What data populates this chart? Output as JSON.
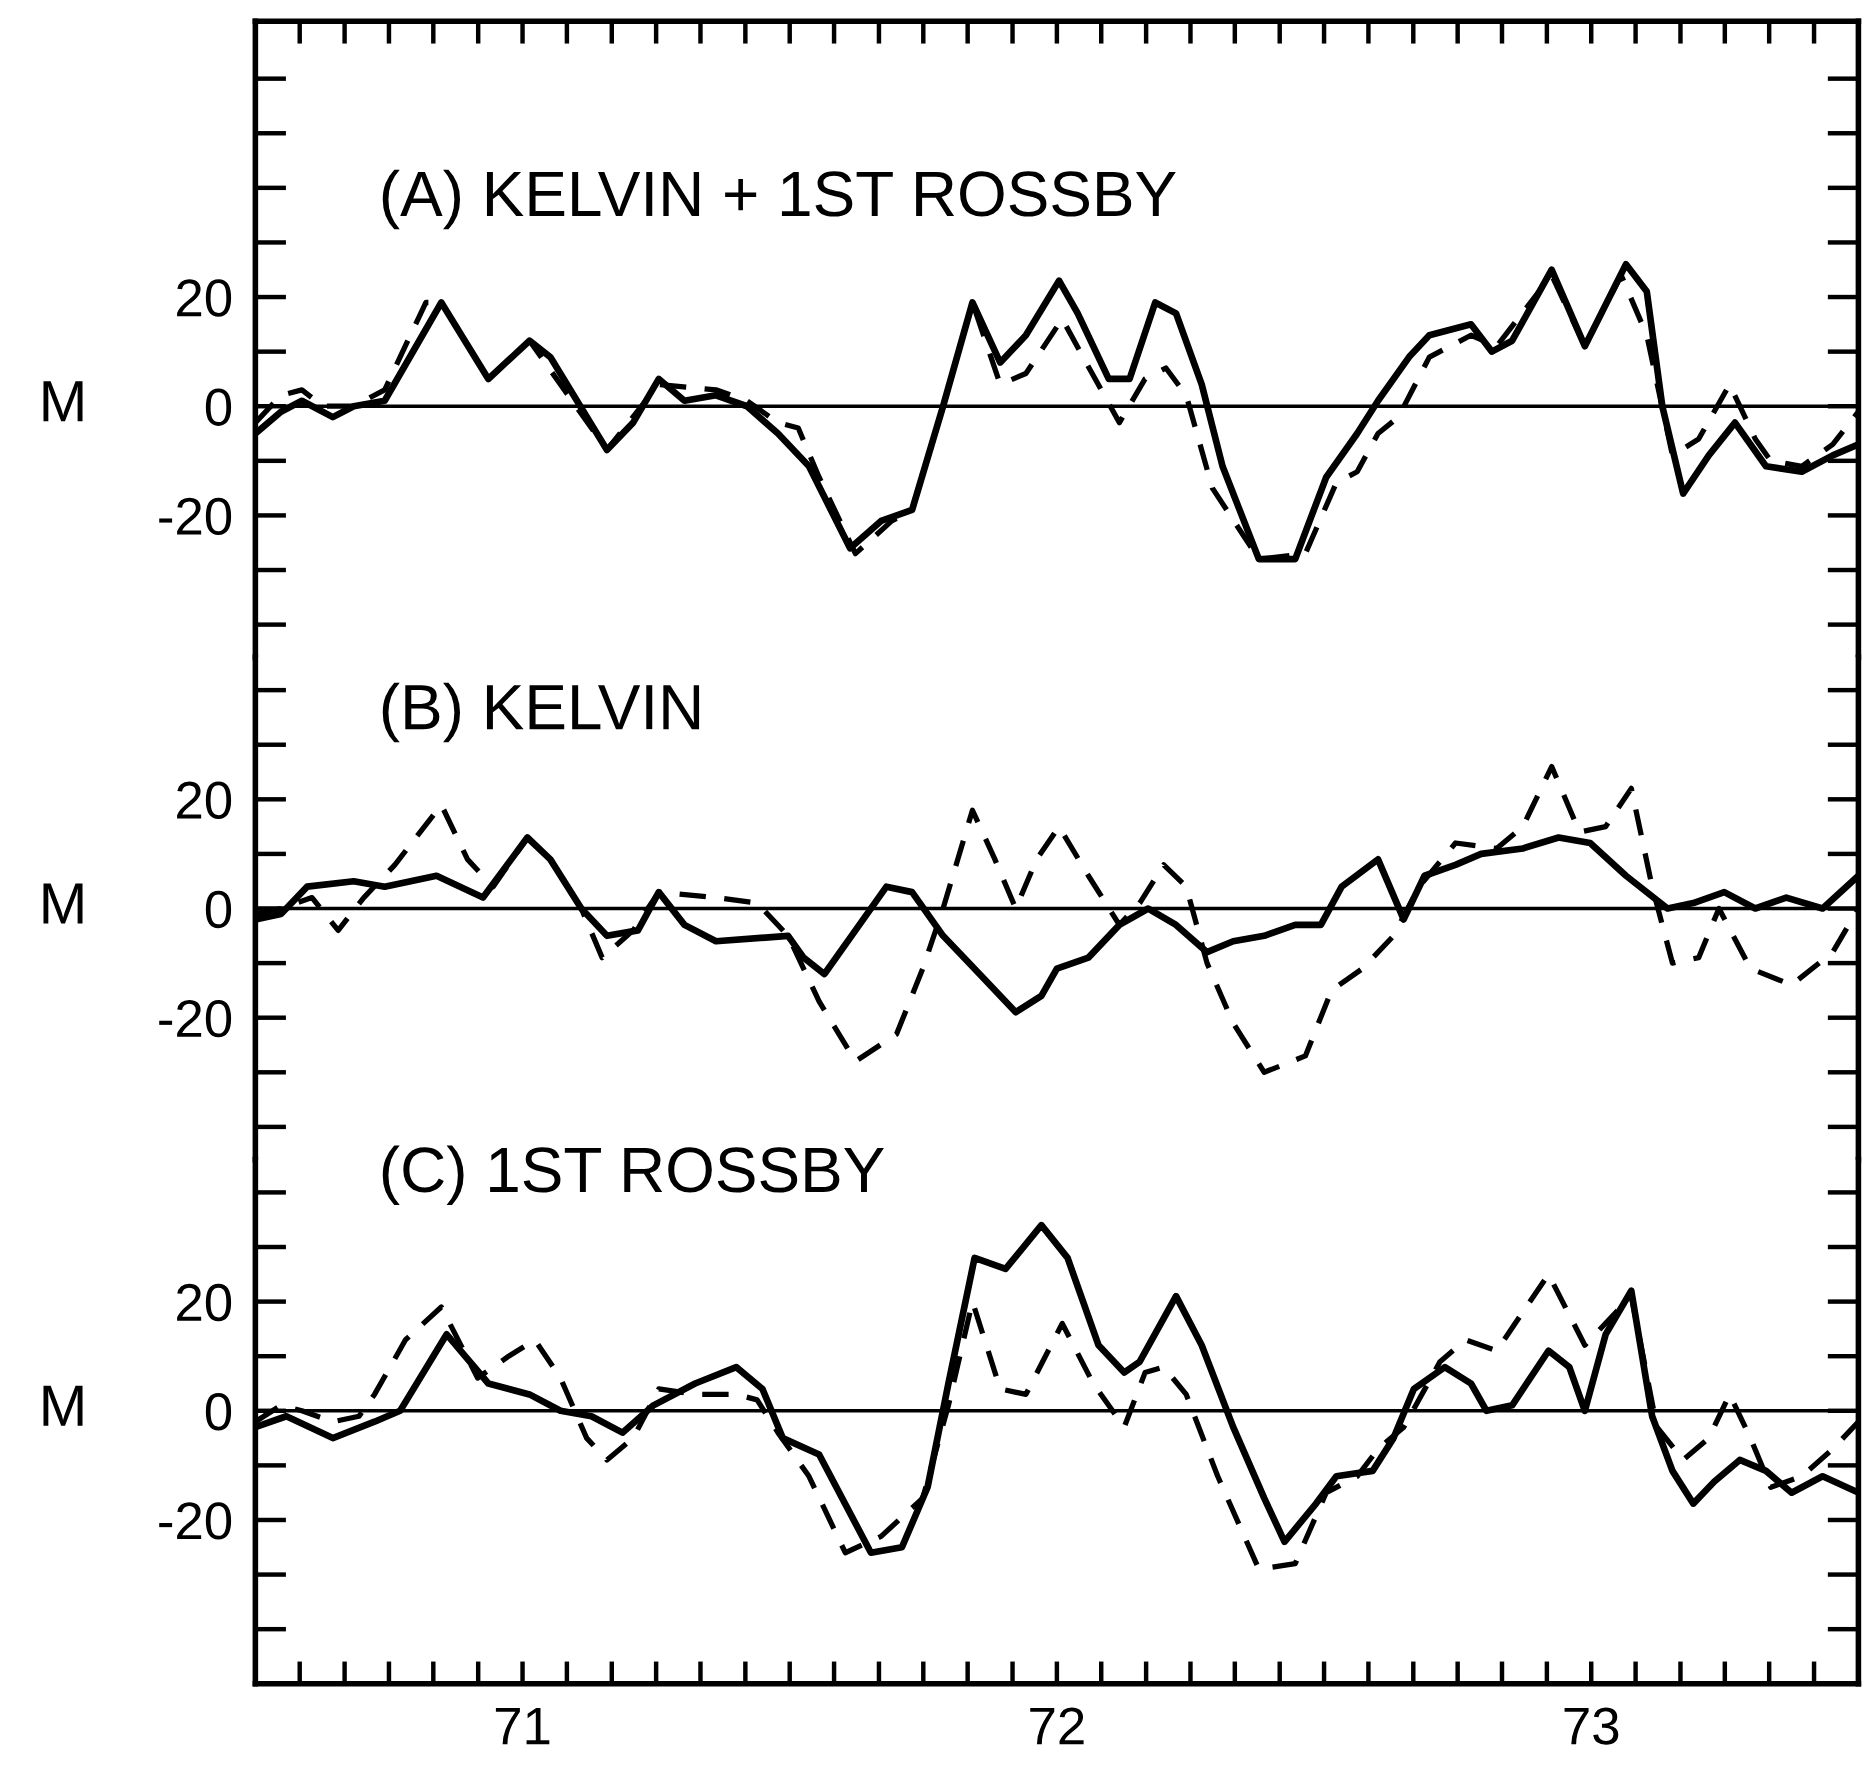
{
  "chart_data": [
    {
      "type": "line",
      "title": "(A) KELVIN + 1ST ROSSBY",
      "ylabel": "M",
      "xlim": [
        71,
        74
      ],
      "ylim": [
        -46,
        70.5
      ],
      "tick_labels": "y",
      "xticks": [
        {
          "value": 71.083,
          "label": null
        },
        {
          "value": 71.167,
          "label": null
        },
        {
          "value": 71.25,
          "label": null
        },
        {
          "value": 71.333,
          "label": null
        },
        {
          "value": 71.417,
          "label": null
        },
        {
          "value": 71.5,
          "label": null
        },
        {
          "value": 71.583,
          "label": null
        },
        {
          "value": 71.667,
          "label": null
        },
        {
          "value": 71.75,
          "label": null
        },
        {
          "value": 71.833,
          "label": null
        },
        {
          "value": 71.917,
          "label": null
        },
        {
          "value": 72,
          "label": null
        },
        {
          "value": 72.083,
          "label": null
        },
        {
          "value": 72.167,
          "label": null
        },
        {
          "value": 72.25,
          "label": null
        },
        {
          "value": 72.333,
          "label": null
        },
        {
          "value": 72.417,
          "label": null
        },
        {
          "value": 72.5,
          "label": null
        },
        {
          "value": 72.583,
          "label": null
        },
        {
          "value": 72.667,
          "label": null
        },
        {
          "value": 72.75,
          "label": null
        },
        {
          "value": 72.833,
          "label": null
        },
        {
          "value": 72.917,
          "label": null
        },
        {
          "value": 73,
          "label": null
        },
        {
          "value": 73.083,
          "label": null
        },
        {
          "value": 73.167,
          "label": null
        },
        {
          "value": 73.25,
          "label": null
        },
        {
          "value": 73.333,
          "label": null
        },
        {
          "value": 73.417,
          "label": null
        },
        {
          "value": 73.5,
          "label": null
        },
        {
          "value": 73.583,
          "label": null
        },
        {
          "value": 73.667,
          "label": null
        },
        {
          "value": 73.75,
          "label": null
        },
        {
          "value": 73.833,
          "label": null
        },
        {
          "value": 73.917,
          "label": null
        }
      ],
      "yticks": [
        {
          "value": -40,
          "label": null
        },
        {
          "value": -30,
          "label": null
        },
        -20,
        {
          "value": -10,
          "label": null
        },
        0,
        {
          "value": 10,
          "label": null
        },
        20,
        {
          "value": 30,
          "label": null
        },
        {
          "value": 40,
          "label": null
        },
        {
          "value": 50,
          "label": null
        },
        {
          "value": 60,
          "label": null
        }
      ],
      "ref_lines": [
        {
          "axis": "y",
          "value": 0,
          "color": "#000000"
        }
      ],
      "series": [
        {
          "color": "#000000",
          "line_style": "solid",
          "x": [
            71.0,
            71.048,
            71.087,
            71.145,
            71.184,
            71.242,
            71.348,
            71.436,
            71.513,
            71.552,
            71.658,
            71.707,
            71.755,
            71.803,
            71.862,
            71.92,
            71.978,
            72.036,
            72.113,
            72.171,
            72.229,
            72.287,
            72.342,
            72.394,
            72.442,
            72.504,
            72.539,
            72.597,
            72.636,
            72.684,
            72.723,
            72.771,
            72.81,
            72.878,
            72.946,
            73.004,
            73.062,
            73.101,
            73.159,
            73.197,
            73.275,
            73.314,
            73.352,
            73.426,
            73.488,
            73.565,
            73.604,
            73.633,
            73.672,
            73.72,
            73.769,
            73.827,
            73.894,
            73.952,
            74.0
          ],
          "values": [
            -5,
            -1,
            1,
            -2,
            0,
            1,
            19,
            5,
            12,
            9,
            -8,
            -3,
            5,
            1,
            2,
            0,
            -5,
            -11,
            -26,
            -21,
            -19,
            0,
            19,
            8,
            13,
            23,
            17,
            5,
            5,
            19,
            17,
            4,
            -11,
            -28,
            -28,
            -13,
            -5,
            1,
            9,
            13,
            15,
            10,
            12,
            25,
            11,
            26,
            21,
            0,
            -16,
            -9,
            -3,
            -11,
            -12,
            -9,
            -7
          ]
        },
        {
          "color": "#000000",
          "line_style": "dashed",
          "x": [
            71.0,
            71.048,
            71.087,
            71.126,
            71.184,
            71.242,
            71.319,
            71.348,
            71.436,
            71.513,
            71.658,
            71.755,
            71.862,
            71.92,
            71.978,
            72.016,
            72.055,
            72.123,
            72.191,
            72.229,
            72.287,
            72.342,
            72.394,
            72.442,
            72.51,
            72.549,
            72.617,
            72.665,
            72.704,
            72.742,
            72.791,
            72.878,
            72.965,
            73.023,
            73.062,
            73.101,
            73.139,
            73.197,
            73.275,
            73.323,
            73.426,
            73.488,
            73.556,
            73.604,
            73.652,
            73.701,
            73.759,
            73.807,
            73.836,
            73.894,
            73.952,
            74.0
          ],
          "values": [
            -3,
            2,
            3,
            0,
            0,
            3,
            19,
            19,
            5,
            12,
            -8,
            4,
            3,
            1,
            -3,
            -4,
            -13,
            -27,
            -21,
            -19,
            0,
            19,
            4,
            6,
            16,
            9,
            -3,
            5,
            7,
            2,
            -15,
            -28,
            -27,
            -14,
            -12,
            -5,
            -2,
            9,
            13,
            11,
            24,
            11,
            24,
            13,
            -9,
            -6,
            4,
            -6,
            -10,
            -11,
            -7,
            -1
          ]
        }
      ]
    },
    {
      "type": "line",
      "title": "(B) KELVIN",
      "ylabel": "M",
      "xlim": [
        71,
        74
      ],
      "ylim": [
        -46,
        46
      ],
      "tick_labels": "y",
      "yticks": [
        {
          "value": -40,
          "label": null
        },
        {
          "value": -30,
          "label": null
        },
        -20,
        {
          "value": -10,
          "label": null
        },
        0,
        {
          "value": 10,
          "label": null
        },
        20,
        {
          "value": 30,
          "label": null
        },
        {
          "value": 40,
          "label": null
        }
      ],
      "ref_lines": [
        {
          "axis": "y",
          "value": 0,
          "color": "#000000"
        }
      ],
      "series": [
        {
          "color": "#000000",
          "line_style": "solid",
          "x": [
            71.0,
            71.048,
            71.097,
            71.184,
            71.242,
            71.339,
            71.426,
            71.509,
            71.552,
            71.61,
            71.658,
            71.716,
            71.755,
            71.803,
            71.862,
            71.997,
            72.026,
            72.065,
            72.123,
            72.181,
            72.229,
            72.287,
            72.365,
            72.423,
            72.471,
            72.5,
            72.559,
            72.617,
            72.671,
            72.723,
            72.781,
            72.83,
            72.888,
            72.946,
            72.994,
            73.033,
            73.101,
            73.149,
            73.188,
            73.246,
            73.294,
            73.372,
            73.439,
            73.498,
            73.565,
            73.643,
            73.691,
            73.749,
            73.807,
            73.865,
            73.933,
            74.0
          ],
          "values": [
            -2,
            -1,
            4,
            5,
            4,
            6,
            2,
            13,
            9,
            0,
            -5,
            -4,
            3,
            -3,
            -6,
            -5,
            -9,
            -12,
            -4,
            4,
            3,
            -5,
            -13,
            -19,
            -16,
            -11,
            -9,
            -3,
            0,
            -3,
            -8,
            -6,
            -5,
            -3,
            -3,
            4,
            9,
            -2,
            6,
            8,
            10,
            11,
            13,
            12,
            6,
            0,
            1,
            3,
            0,
            2,
            0,
            6
          ]
        },
        {
          "color": "#000000",
          "line_style": "dashed",
          "x": [
            71.0,
            71.048,
            71.106,
            71.155,
            71.203,
            71.261,
            71.348,
            71.397,
            71.445,
            71.509,
            71.552,
            71.61,
            71.649,
            71.707,
            71.755,
            71.862,
            71.939,
            71.997,
            72.055,
            72.123,
            72.2,
            72.249,
            72.287,
            72.342,
            72.384,
            72.423,
            72.462,
            72.504,
            72.559,
            72.617,
            72.655,
            72.7,
            72.742,
            72.781,
            72.83,
            72.888,
            72.965,
            73.014,
            73.072,
            73.13,
            73.178,
            73.246,
            73.323,
            73.372,
            73.426,
            73.478,
            73.527,
            73.575,
            73.614,
            73.652,
            73.701,
            73.739,
            73.798,
            73.875,
            73.952,
            74.0
          ],
          "values": [
            -1,
            0,
            2,
            -4,
            2,
            8,
            19,
            9,
            4,
            13,
            9,
            0,
            -9,
            -4,
            3,
            2,
            1,
            -5,
            -17,
            -28,
            -23,
            -11,
            0,
            18,
            9,
            0,
            9,
            15,
            6,
            -3,
            1,
            8,
            4,
            -10,
            -21,
            -30,
            -27,
            -15,
            -11,
            -5,
            4,
            12,
            11,
            15,
            26,
            14,
            15,
            22,
            4,
            -10,
            -9,
            0,
            -11,
            -14,
            -8,
            0
          ]
        }
      ]
    },
    {
      "type": "line",
      "title": "(C) 1ST ROSSBY",
      "ylabel": "M",
      "xlim": [
        71,
        74
      ],
      "ylim": [
        -50,
        46
      ],
      "xticks": [
        {
          "value": 71.083,
          "label": null
        },
        {
          "value": 71.167,
          "label": null
        },
        {
          "value": 71.25,
          "label": null
        },
        {
          "value": 71.333,
          "label": null
        },
        {
          "value": 71.417,
          "label": null
        },
        {
          "value": 71.5,
          "label": "71"
        },
        {
          "value": 71.583,
          "label": null
        },
        {
          "value": 71.667,
          "label": null
        },
        {
          "value": 71.75,
          "label": null
        },
        {
          "value": 71.833,
          "label": null
        },
        {
          "value": 71.917,
          "label": null
        },
        {
          "value": 72,
          "label": null
        },
        {
          "value": 72.083,
          "label": null
        },
        {
          "value": 72.167,
          "label": null
        },
        {
          "value": 72.25,
          "label": null
        },
        {
          "value": 72.333,
          "label": null
        },
        {
          "value": 72.417,
          "label": null
        },
        {
          "value": 72.5,
          "label": "72"
        },
        {
          "value": 72.583,
          "label": null
        },
        {
          "value": 72.667,
          "label": null
        },
        {
          "value": 72.75,
          "label": null
        },
        {
          "value": 72.833,
          "label": null
        },
        {
          "value": 72.917,
          "label": null
        },
        {
          "value": 73,
          "label": null
        },
        {
          "value": 73.083,
          "label": null
        },
        {
          "value": 73.167,
          "label": null
        },
        {
          "value": 73.25,
          "label": null
        },
        {
          "value": 73.333,
          "label": null
        },
        {
          "value": 73.417,
          "label": null
        },
        {
          "value": 73.5,
          "label": "73"
        },
        {
          "value": 73.583,
          "label": null
        },
        {
          "value": 73.667,
          "label": null
        },
        {
          "value": 73.75,
          "label": null
        },
        {
          "value": 73.833,
          "label": null
        },
        {
          "value": 73.917,
          "label": null
        }
      ],
      "yticks": [
        {
          "value": -40,
          "label": null
        },
        {
          "value": -30,
          "label": null
        },
        -20,
        {
          "value": -10,
          "label": null
        },
        0,
        {
          "value": 10,
          "label": null
        },
        20,
        {
          "value": 30,
          "label": null
        },
        {
          "value": 40,
          "label": null
        }
      ],
      "ref_lines": [
        {
          "axis": "y",
          "value": 0,
          "color": "#000000"
        }
      ],
      "series": [
        {
          "color": "#000000",
          "line_style": "solid",
          "x": [
            71.0,
            71.058,
            71.145,
            71.223,
            71.271,
            71.358,
            71.436,
            71.513,
            71.571,
            71.629,
            71.687,
            71.745,
            71.823,
            71.9,
            71.949,
            71.987,
            72.055,
            72.152,
            72.21,
            72.258,
            72.297,
            72.346,
            72.404,
            72.471,
            72.52,
            72.578,
            72.626,
            72.655,
            72.723,
            72.771,
            72.83,
            72.888,
            72.926,
            72.985,
            73.023,
            73.091,
            73.13,
            73.168,
            73.226,
            73.275,
            73.304,
            73.352,
            73.42,
            73.459,
            73.488,
            73.527,
            73.575,
            73.614,
            73.652,
            73.691,
            73.73,
            73.778,
            73.827,
            73.875,
            73.933,
            74.0
          ],
          "values": [
            -3,
            -1,
            -5,
            -2,
            0,
            14,
            5,
            3,
            0,
            -1,
            -4,
            1,
            5,
            8,
            4,
            -5,
            -8,
            -26,
            -25,
            -14,
            5,
            28,
            26,
            34,
            28,
            12,
            7,
            9,
            21,
            12,
            -3,
            -16,
            -24,
            -17,
            -12,
            -11,
            -5,
            4,
            8,
            5,
            0,
            1,
            11,
            8,
            0,
            14,
            22,
            -1,
            -11,
            -17,
            -13,
            -9,
            -11,
            -15,
            -12,
            -15
          ]
        },
        {
          "color": "#000000",
          "line_style": "dashed",
          "x": [
            71.0,
            71.048,
            71.087,
            71.145,
            71.194,
            71.223,
            71.281,
            71.348,
            71.416,
            71.474,
            71.523,
            71.571,
            71.62,
            71.658,
            71.707,
            71.755,
            71.823,
            71.9,
            71.939,
            71.978,
            72.036,
            72.104,
            72.171,
            72.249,
            72.297,
            72.342,
            72.394,
            72.442,
            72.51,
            72.568,
            72.626,
            72.665,
            72.7,
            72.742,
            72.801,
            72.878,
            72.946,
            73.004,
            73.062,
            73.101,
            73.149,
            73.217,
            73.265,
            73.323,
            73.42,
            73.488,
            73.575,
            73.623,
            73.672,
            73.72,
            73.759,
            73.798,
            73.836,
            73.894,
            73.952,
            74.0
          ],
          "values": [
            -2,
            1,
            0,
            -2,
            -1,
            3,
            13,
            19,
            6,
            10,
            13,
            6,
            -5,
            -9,
            -5,
            4,
            3,
            3,
            2,
            -4,
            -12,
            -26,
            -23,
            -16,
            1,
            20,
            4,
            3,
            16,
            5,
            -3,
            7,
            8,
            3,
            -12,
            -29,
            -28,
            -15,
            -12,
            -7,
            -3,
            9,
            13,
            11,
            25,
            12,
            21,
            -3,
            -9,
            -5,
            3,
            -5,
            -14,
            -12,
            -7,
            -2
          ]
        }
      ]
    }
  ]
}
